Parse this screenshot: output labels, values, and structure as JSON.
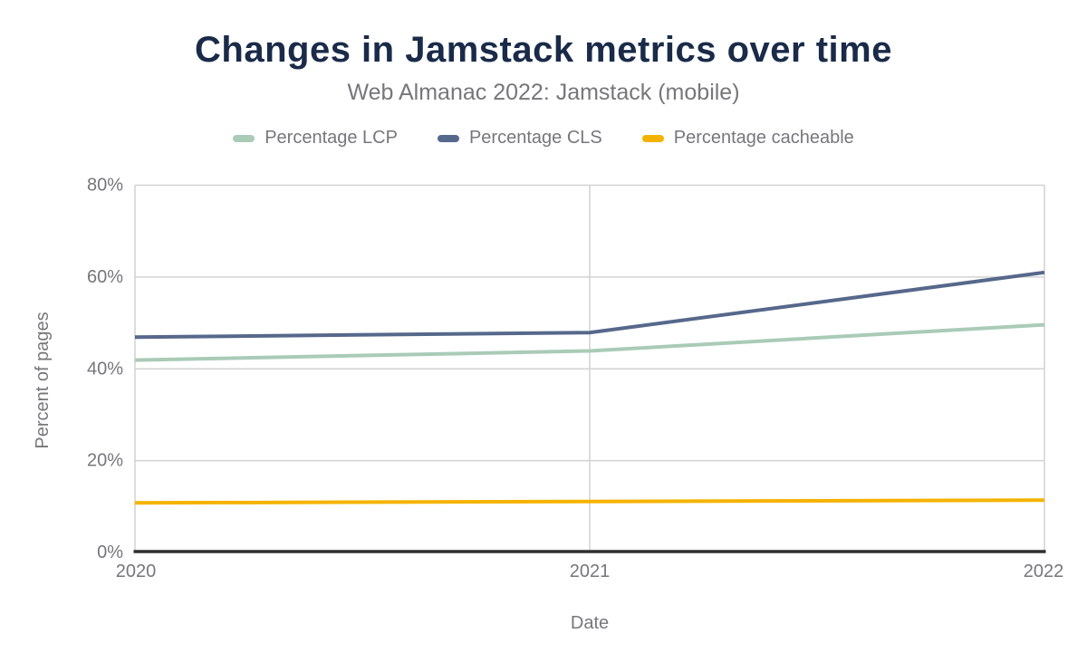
{
  "header": {
    "title": "Changes in Jamstack metrics over time",
    "subtitle": "Web Almanac 2022: Jamstack (mobile)"
  },
  "colors": {
    "page_bg": "#ffffff",
    "title": "#1a2b49",
    "subtitle_text": "#76777a",
    "axis_text": "#76777a",
    "gridline": "#d2d2d2",
    "axis_line": "#2f2f2f"
  },
  "chart_data": {
    "type": "line",
    "title": "Changes in Jamstack metrics over time",
    "subtitle": "Web Almanac 2022: Jamstack (mobile)",
    "xlabel": "Date",
    "ylabel": "Percent of pages",
    "x": [
      2020,
      2021,
      2022
    ],
    "x_tick_labels": [
      "2020",
      "2021",
      "2022"
    ],
    "y_ticks": [
      0,
      20,
      40,
      60,
      80
    ],
    "y_tick_labels": [
      "0%",
      "20%",
      "40%",
      "60%",
      "80%"
    ],
    "ylim": [
      0,
      80
    ],
    "grid": "horizontal gridlines at 20% steps, vertical gridlines at each year",
    "legend_position": "top",
    "series": [
      {
        "name": "Percentage LCP",
        "color": "#a9cbb7",
        "values": [
          41.9,
          43.9,
          49.6
        ]
      },
      {
        "name": "Percentage CLS",
        "color": "#56688b",
        "values": [
          46.9,
          47.9,
          61.0
        ]
      },
      {
        "name": "Percentage cacheable",
        "color": "#f5b301",
        "values": [
          10.8,
          11.1,
          11.4
        ]
      }
    ]
  }
}
